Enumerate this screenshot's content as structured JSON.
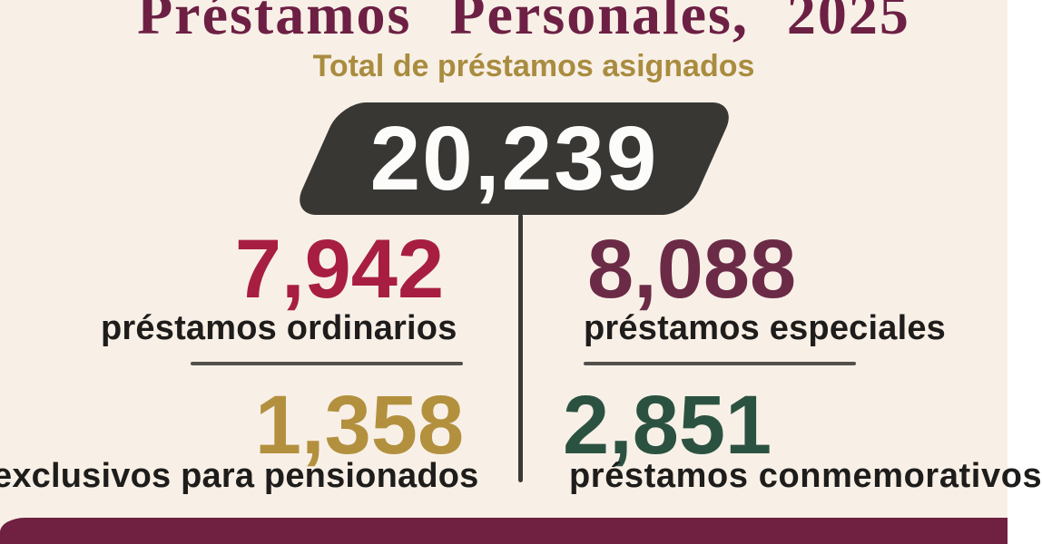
{
  "page": {
    "background_color": "#f8f0e7",
    "accent_maroon": "#6d2044",
    "accent_gold": "#a98c3f",
    "badge_color": "#383734",
    "footer_bar_color": "#702040"
  },
  "header": {
    "title": "Préstamos Personales, 2025",
    "subtitle": "Total de préstamos asignados"
  },
  "total_badge": {
    "value": "20,239"
  },
  "stats": [
    {
      "value": "7,942",
      "label": "préstamos ordinarios",
      "color": "#a81e42"
    },
    {
      "value": "8,088",
      "label": "préstamos especiales",
      "color": "#6b2b47"
    },
    {
      "value": "1,358",
      "label": "exclusivos para pensionados",
      "color": "#b3903e"
    },
    {
      "value": "2,851",
      "label": "préstamos conmemorativos",
      "color": "#2b5240"
    }
  ],
  "chart_data": {
    "type": "table",
    "title": "Préstamos Personales, 2025",
    "subtitle": "Total de préstamos asignados",
    "total": 20239,
    "categories": [
      "préstamos ordinarios",
      "préstamos especiales",
      "exclusivos para pensionados",
      "préstamos conmemorativos"
    ],
    "values": [
      7942,
      8088,
      1358,
      2851
    ],
    "value_colors": [
      "#a81e42",
      "#6b2b47",
      "#b3903e",
      "#2b5240"
    ],
    "legend_position": "none",
    "grid": false
  }
}
